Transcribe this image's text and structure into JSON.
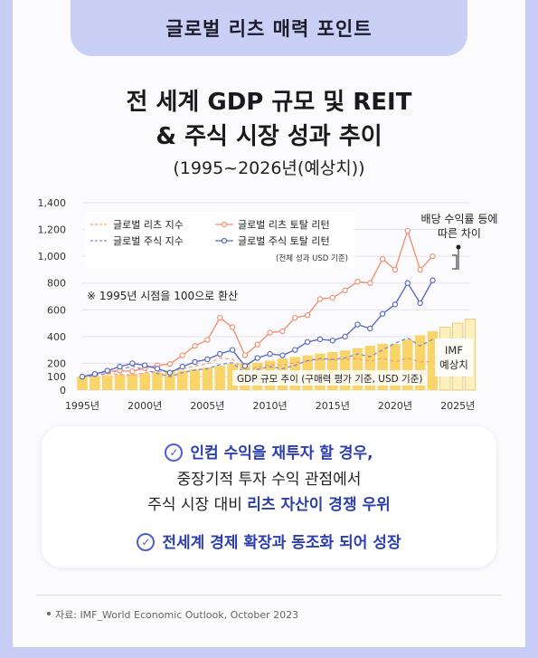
{
  "header": {
    "title": "글로벌 리츠 매력 포인트"
  },
  "title": {
    "line1": "전 세계 GDP 규모 및 REIT",
    "line2": "& 주식 시장 성과 추이",
    "subtitle": "(1995~2026년(예상치))"
  },
  "chart_data": {
    "type": "line",
    "x": [
      1995,
      1996,
      1997,
      1998,
      1999,
      2000,
      2001,
      2002,
      2003,
      2004,
      2005,
      2006,
      2007,
      2008,
      2009,
      2010,
      2011,
      2012,
      2013,
      2014,
      2015,
      2016,
      2017,
      2018,
      2019,
      2020,
      2021,
      2022,
      2023
    ],
    "series": [
      {
        "name": "글로벌 리츠 지수",
        "style": "dashed",
        "color": "#f4a37c",
        "values": [
          100,
          108,
          122,
          118,
          110,
          130,
          138,
          140,
          160,
          180,
          195,
          240,
          230,
          150,
          170,
          190,
          185,
          205,
          215,
          230,
          225,
          230,
          235,
          215,
          240,
          210,
          240,
          210,
          215
        ]
      },
      {
        "name": "글로벌 주식 지수",
        "style": "dashed",
        "color": "#7a8bd0",
        "values": [
          100,
          108,
          125,
          150,
          180,
          150,
          125,
          100,
          130,
          150,
          160,
          190,
          205,
          125,
          155,
          175,
          160,
          185,
          220,
          235,
          230,
          240,
          270,
          250,
          300,
          350,
          390,
          330,
          380
        ]
      },
      {
        "name": "글로벌 리츠 토탈 리턴",
        "style": "solid-marker",
        "color": "#f29172",
        "values": [
          100,
          120,
          140,
          145,
          140,
          165,
          185,
          195,
          260,
          330,
          375,
          540,
          470,
          260,
          340,
          430,
          440,
          540,
          560,
          680,
          690,
          745,
          810,
          800,
          980,
          900,
          1190,
          900,
          1000
        ]
      },
      {
        "name": "글로벌 주식 토탈 리턴",
        "style": "solid-marker",
        "color": "#5a6bc4",
        "values": [
          100,
          120,
          145,
          175,
          200,
          185,
          160,
          130,
          175,
          210,
          230,
          270,
          300,
          180,
          240,
          270,
          260,
          300,
          360,
          380,
          370,
          400,
          490,
          460,
          570,
          640,
          800,
          650,
          820
        ]
      }
    ],
    "gdp_bars": {
      "name": "GDP 규모 추이 (구매력 평가 기준, USD 기준)",
      "years": [
        1995,
        1996,
        1997,
        1998,
        1999,
        2000,
        2001,
        2002,
        2003,
        2004,
        2005,
        2006,
        2007,
        2008,
        2009,
        2010,
        2011,
        2012,
        2013,
        2014,
        2015,
        2016,
        2017,
        2018,
        2019,
        2020,
        2021,
        2022,
        2023,
        2024,
        2025,
        2026
      ],
      "values": [
        100,
        104,
        110,
        114,
        119,
        127,
        132,
        138,
        146,
        157,
        169,
        182,
        196,
        204,
        205,
        220,
        236,
        248,
        260,
        273,
        284,
        296,
        313,
        331,
        346,
        344,
        378,
        410,
        440,
        470,
        500,
        530
      ],
      "forecast_from": 2024,
      "forecast_label": "IMF\n예상치"
    },
    "yticks": [
      0,
      100,
      200,
      400,
      600,
      800,
      1000,
      1200,
      1400
    ],
    "ytick_labels": [
      "0",
      "100",
      "200",
      "400",
      "600",
      "800",
      "1,000",
      "1,200",
      "1,400"
    ],
    "xticks": [
      1995,
      2000,
      2005,
      2010,
      2015,
      2020,
      2025
    ],
    "xtick_labels": [
      "1995년",
      "2000년",
      "2005년",
      "2010년",
      "2015년",
      "2020년",
      "2025년"
    ],
    "ylim": [
      0,
      1400
    ],
    "xlim": [
      1995,
      2026
    ],
    "grid": true,
    "legend_position": "top-left",
    "legend_note": "(전체 성과 USD 기준)",
    "annotations": {
      "base_note": "※ 1995년 시점을 100으로 환산",
      "dividend_note": "배당 수익률 등에\n따른 차이"
    },
    "colors": {
      "bar": "#f8d469",
      "bar_forecast": "#fcefc0",
      "grid": "#e3e3ea",
      "accent": "#2c3fae"
    }
  },
  "callout": {
    "line1": "인컴 수익을 재투자 할 경우,",
    "line2": "중장기적 투자 수익  관점에서",
    "line3_pre": "주식 시장 대비 ",
    "line3_hl": "리츠 자산이 경쟁 우위",
    "line4": "전세계 경제 확장과 동조화 되어 성장",
    "check_icon": "✓"
  },
  "source": {
    "text": "자료: IMF_World Economic Outlook, October 2023"
  }
}
